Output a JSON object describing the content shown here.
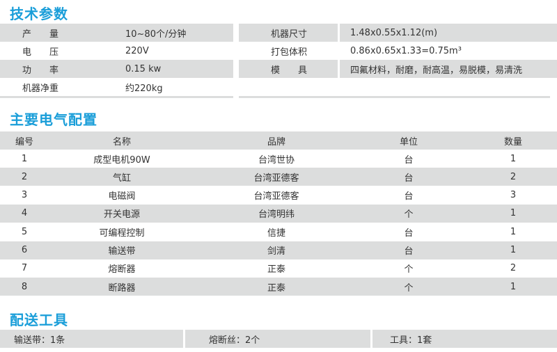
{
  "sections": {
    "tech": "技术参数",
    "electrical": "主要电气配置",
    "tools": "配送工具"
  },
  "tech_params": {
    "left": [
      {
        "label": "产　　量",
        "value": "10~80个/分钟"
      },
      {
        "label": "电　　压",
        "value": "220V"
      },
      {
        "label": "功　　率",
        "value": "0.15 kw"
      },
      {
        "label": "机器净重",
        "value": "约220kg"
      }
    ],
    "right": [
      {
        "label": "机器尺寸",
        "value": "1.48x0.55x1.12(m)"
      },
      {
        "label": "打包体积",
        "value": "0.86x0.65x1.33=0.75m³"
      },
      {
        "label": "模　　具",
        "value": "四氟材料，耐磨，耐高温，易脱模，易清洗"
      }
    ]
  },
  "electrical": {
    "headers": [
      "编号",
      "名称",
      "品牌",
      "单位",
      "数量"
    ],
    "rows": [
      [
        "1",
        "成型电机90W",
        "台湾世协",
        "台",
        "1"
      ],
      [
        "2",
        "气缸",
        "台湾亚德客",
        "台",
        "2"
      ],
      [
        "3",
        "电磁阀",
        "台湾亚德客",
        "台",
        "3"
      ],
      [
        "4",
        "开关电源",
        "台湾明纬",
        "个",
        "1"
      ],
      [
        "5",
        "可编程控制",
        "信捷",
        "台",
        "1"
      ],
      [
        "6",
        "输送带",
        "剑清",
        "台",
        "1"
      ],
      [
        "7",
        "熔断器",
        "正泰",
        "个",
        "2"
      ],
      [
        "8",
        "断路器",
        "正泰",
        "个",
        "1"
      ]
    ]
  },
  "tools": [
    "输送带：1条",
    "熔断丝：2个",
    "工具：1套"
  ],
  "colors": {
    "accent": "#1a9ed9",
    "row_gray": "#dcdddd"
  }
}
